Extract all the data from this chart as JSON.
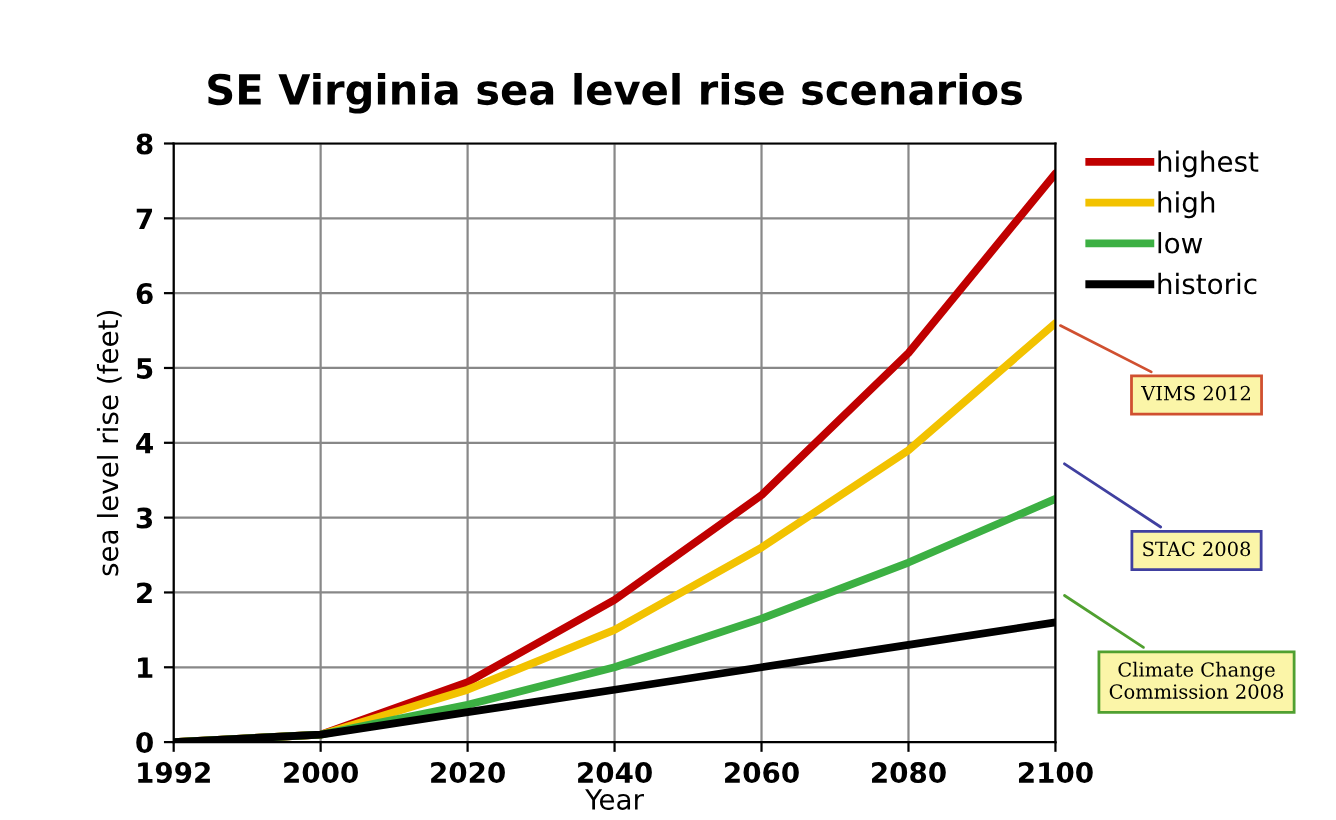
{
  "chart_data": {
    "type": "line",
    "title": "SE Virginia sea level rise scenarios",
    "xlabel": "Year",
    "ylabel": "sea level rise (feet)",
    "categories": [
      "1992",
      "2000",
      "2020",
      "2040",
      "2060",
      "2080",
      "2100"
    ],
    "series": [
      {
        "name": "highest",
        "color": "#c00000",
        "values": [
          0,
          0.1,
          0.8,
          1.9,
          3.3,
          5.2,
          7.6
        ]
      },
      {
        "name": "high",
        "color": "#f2c200",
        "values": [
          0,
          0.1,
          0.7,
          1.5,
          2.6,
          3.9,
          5.6
        ]
      },
      {
        "name": "low",
        "color": "#3cb043",
        "values": [
          0,
          0.1,
          0.5,
          1.0,
          1.65,
          2.4,
          3.25
        ]
      },
      {
        "name": "historic",
        "color": "#000000",
        "values": [
          0,
          0.1,
          0.4,
          0.7,
          1.0,
          1.3,
          1.6
        ]
      }
    ],
    "ylim": [
      0,
      8
    ],
    "yticks": [
      0,
      1,
      2,
      3,
      4,
      5,
      6,
      7,
      8
    ],
    "grid": true,
    "legend": "top right",
    "marker": "none",
    "line_style": "solid",
    "annotations": [
      {
        "text": "VIMS 2012",
        "x": "2100",
        "y": 5.6
      },
      "STAC 2008",
      "Climate Change Commission 2008"
    ]
  }
}
